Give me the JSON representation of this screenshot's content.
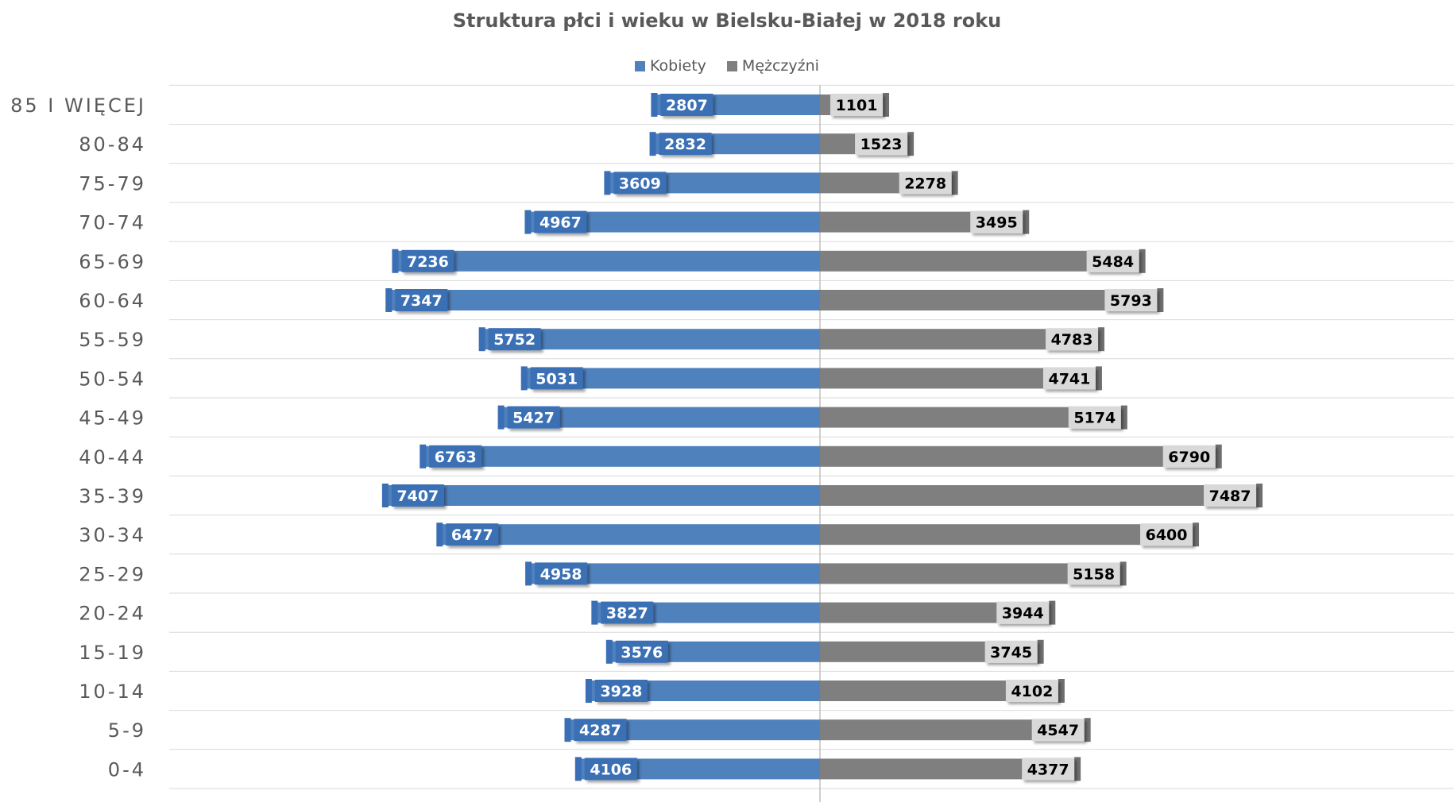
{
  "chart_data": {
    "type": "bar",
    "orientation": "horizontal",
    "layout": "population-pyramid",
    "title": "Struktura płci i wieku w Bielsku-Białej w 2018 roku",
    "categories": [
      "85 I WIĘCEJ",
      "80-84",
      "75-79",
      "70-74",
      "65-69",
      "60-64",
      "55-59",
      "50-54",
      "45-49",
      "40-44",
      "35-39",
      "30-34",
      "25-29",
      "20-24",
      "15-19",
      "10-14",
      "5-9",
      "0-4"
    ],
    "series": [
      {
        "name": "Kobiety",
        "color": "#4F81BD",
        "values": [
          2807,
          2832,
          3609,
          4967,
          7236,
          7347,
          5752,
          5031,
          5427,
          6763,
          7407,
          6477,
          4958,
          3827,
          3576,
          3928,
          4287,
          4106
        ]
      },
      {
        "name": "Mężczyźni",
        "color": "#7F7F7F",
        "values": [
          1101,
          1523,
          2278,
          3495,
          5484,
          5793,
          4783,
          4741,
          5174,
          6790,
          7487,
          6400,
          5158,
          3944,
          3745,
          4102,
          4547,
          4377
        ]
      }
    ],
    "legend_position": "top",
    "data_labels": true,
    "grid": true,
    "xlim": [
      -10000,
      10000
    ]
  }
}
